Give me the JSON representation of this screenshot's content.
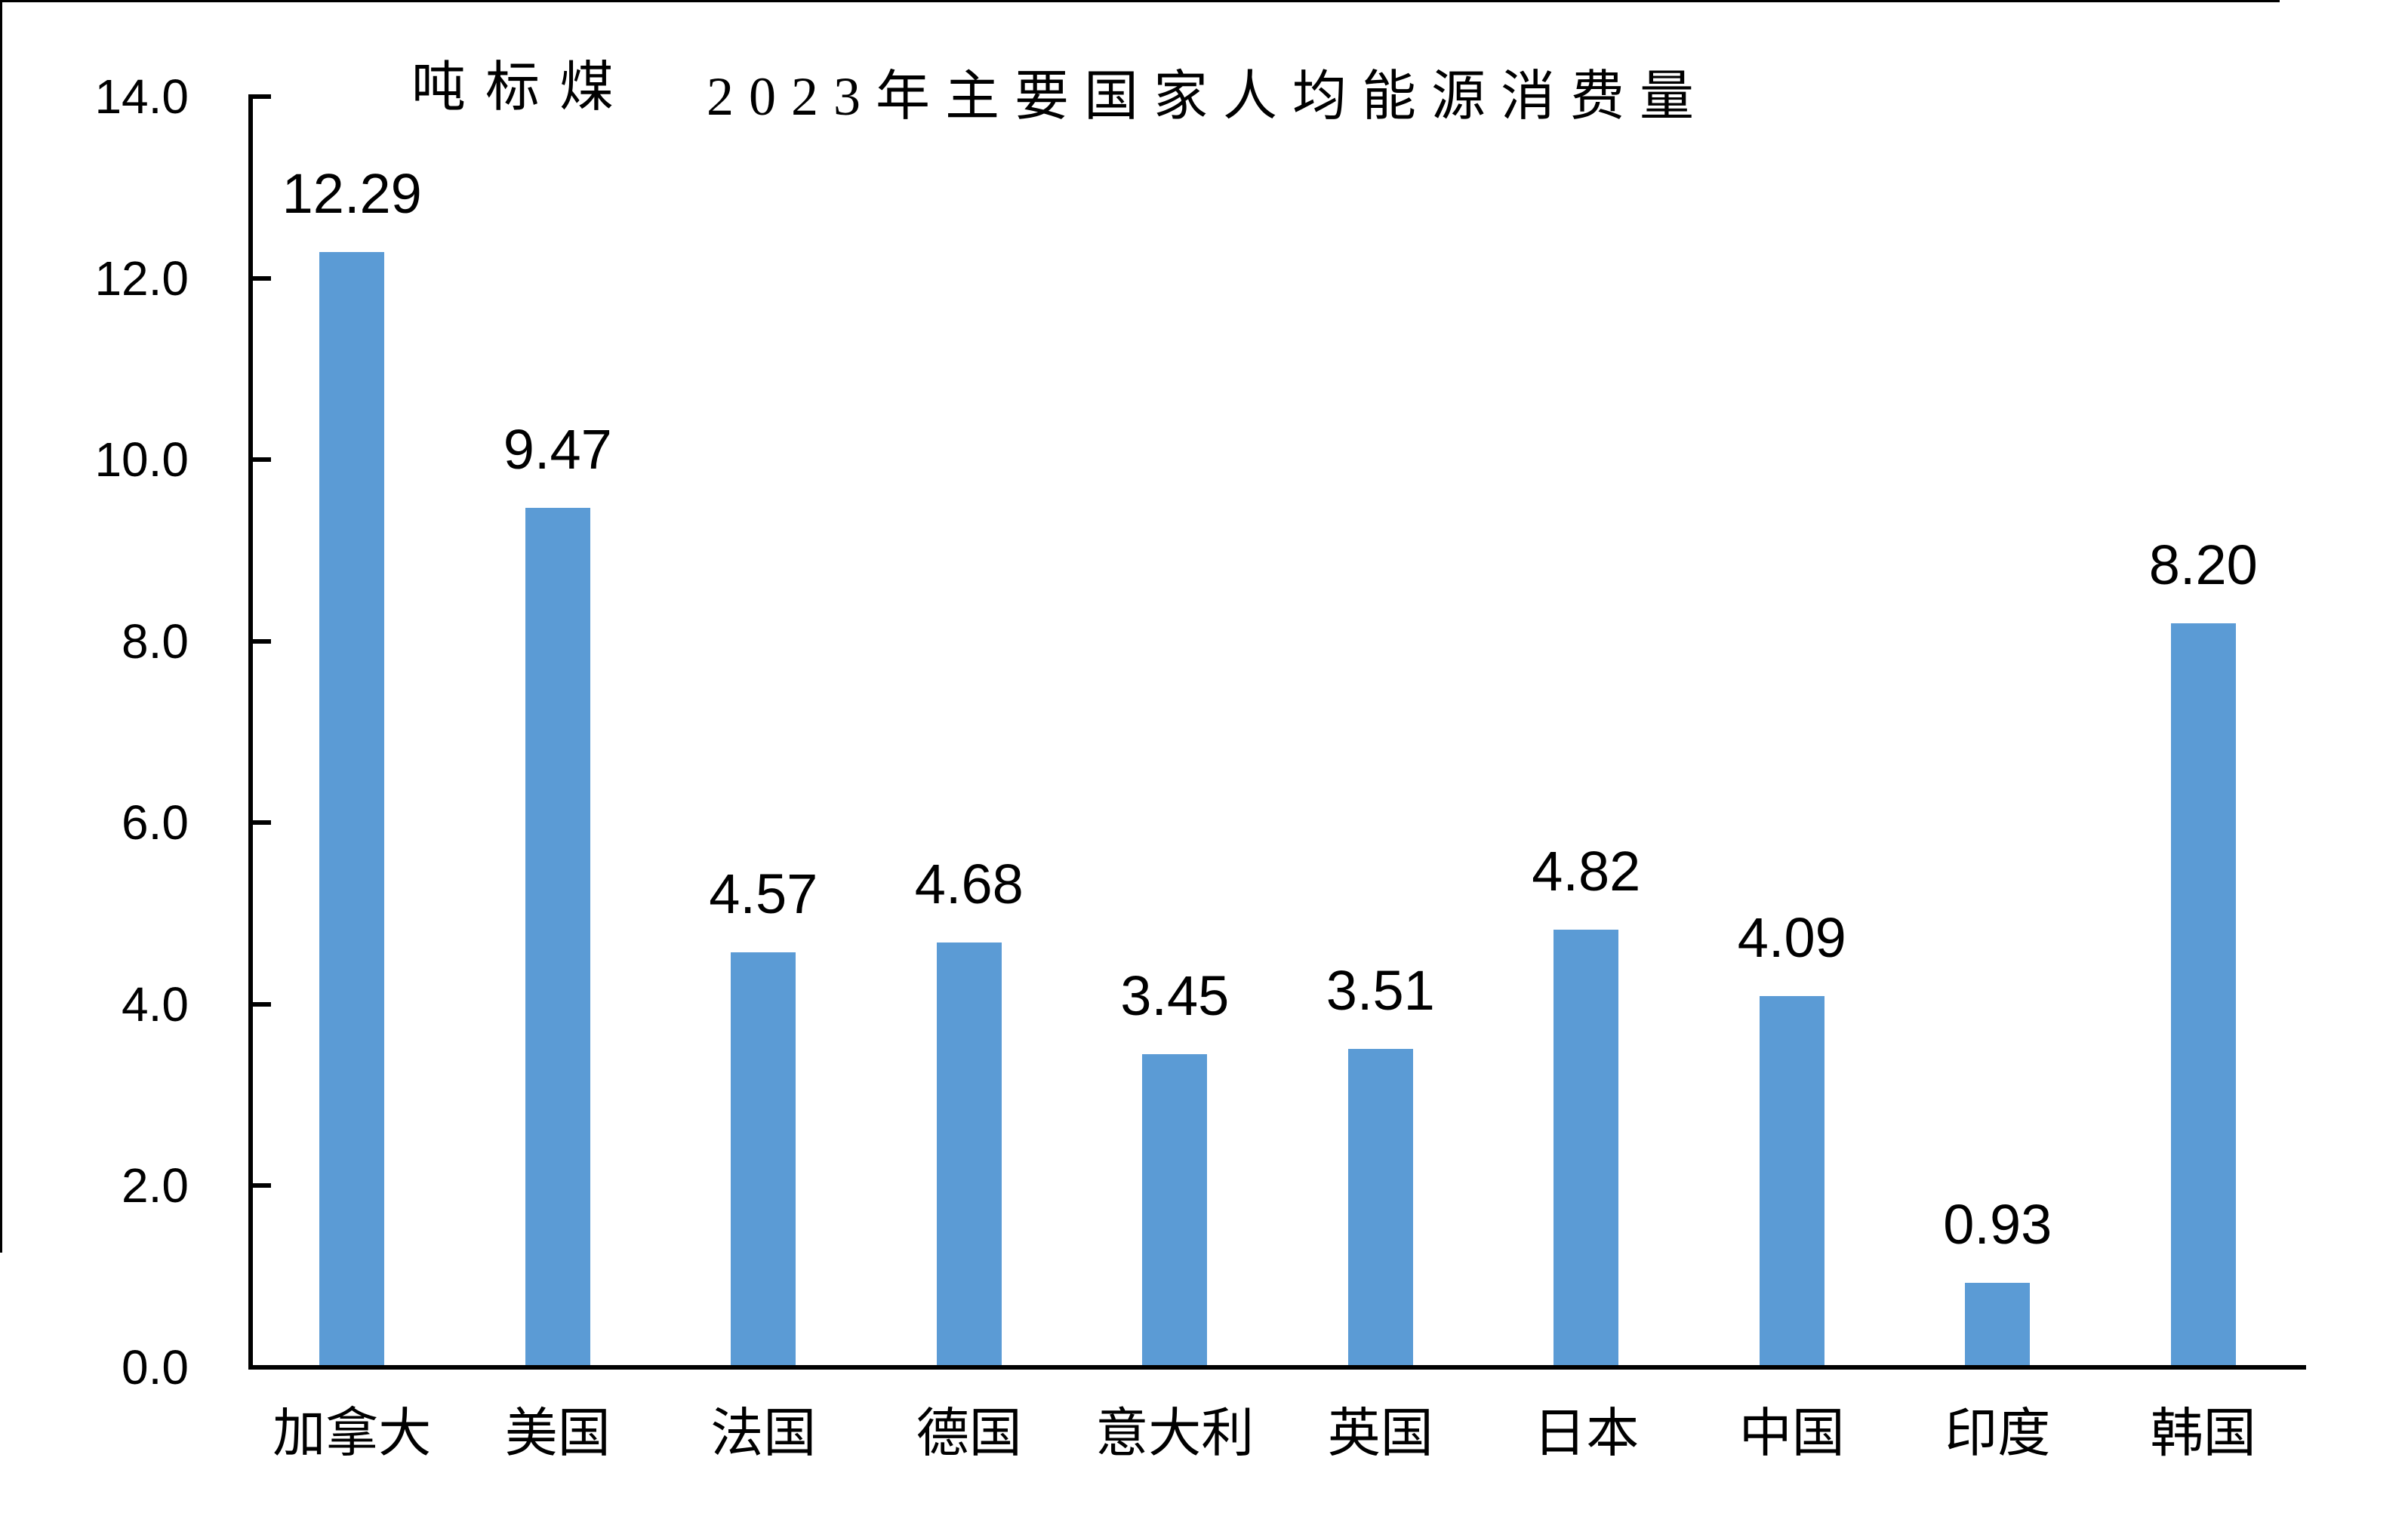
{
  "chart_data": {
    "type": "bar",
    "title": "2023年主要国家人均能源消费量",
    "unit_label": "吨标煤",
    "categories": [
      "加拿大",
      "美国",
      "法国",
      "德国",
      "意大利",
      "英国",
      "日本",
      "中国",
      "印度",
      "韩国"
    ],
    "values": [
      12.29,
      9.47,
      4.57,
      4.68,
      3.45,
      3.51,
      4.82,
      4.09,
      0.93,
      8.2
    ],
    "value_labels": [
      "12.29",
      "9.47",
      "4.57",
      "4.68",
      "3.45",
      "3.51",
      "4.82",
      "4.09",
      "0.93",
      "8.20"
    ],
    "y_ticks": [
      0,
      2,
      4,
      6,
      8,
      10,
      12,
      14
    ],
    "y_tick_labels": [
      "0.0",
      "2.0",
      "4.0",
      "6.0",
      "8.0",
      "10.0",
      "12.0",
      "14.0"
    ],
    "ylim": [
      0,
      14
    ],
    "bar_color": "#5B9BD5",
    "axis_color": "#000000",
    "text_color": "#000000",
    "grid": false,
    "legend": false
  }
}
